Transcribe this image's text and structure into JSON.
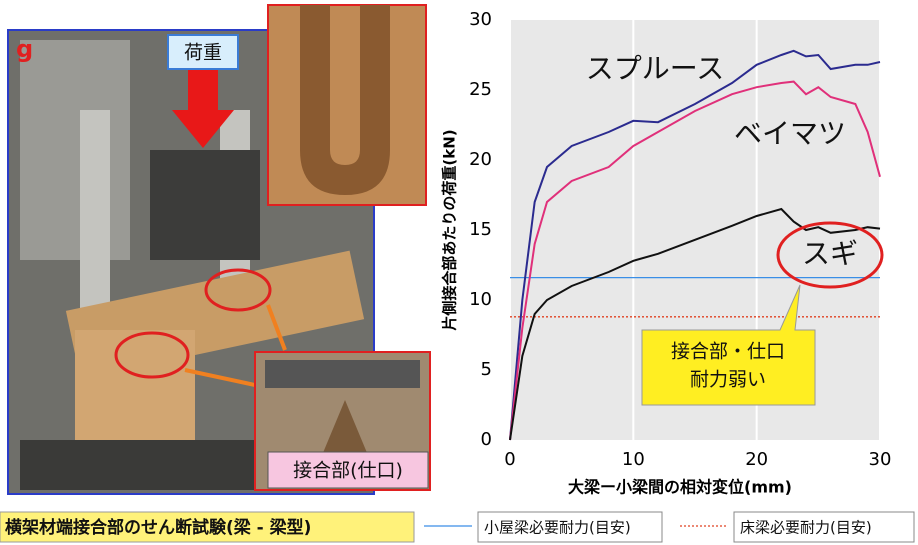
{
  "chart_data": {
    "type": "line",
    "ylabel": "片側接合部あたりの荷重(kN)",
    "xlabel": "大梁ー小梁間の相対変位(mm)",
    "x": [
      0,
      0.5,
      1,
      2,
      3,
      5,
      8,
      10,
      12,
      15,
      18,
      20,
      22,
      23,
      24,
      25,
      26,
      28,
      29,
      30
    ],
    "series": [
      {
        "name": "スプルース",
        "color": "#2b2b8f",
        "values": [
          0,
          5,
          10,
          17,
          19.5,
          21,
          22,
          22.8,
          22.7,
          24,
          25.5,
          26.8,
          27.5,
          27.8,
          27.4,
          27.5,
          26.5,
          26.8,
          26.8,
          27
        ]
      },
      {
        "name": "ベイマツ",
        "color": "#e0307a",
        "values": [
          0,
          4,
          8,
          14,
          17,
          18.5,
          19.5,
          21,
          22,
          23.5,
          24.7,
          25.2,
          25.5,
          25.6,
          24.7,
          25.2,
          24.5,
          24,
          22,
          18.8
        ]
      },
      {
        "name": "スギ",
        "color": "#111111",
        "values": [
          0,
          3,
          6,
          9,
          10,
          11,
          12,
          12.8,
          13.3,
          14.3,
          15.3,
          16,
          16.5,
          15.6,
          15,
          15.2,
          14.8,
          15,
          15.2,
          15.1
        ]
      }
    ],
    "reference_lines": [
      {
        "name": "小屋梁必要耐力(目安)",
        "value": 11.6,
        "color": "#3a8ee6",
        "style": "solid"
      },
      {
        "name": "床梁必要耐力(目安)",
        "value": 8.8,
        "color": "#e04020",
        "style": "dotted"
      }
    ],
    "callout": [
      "接合部・仕口",
      "耐力弱い"
    ],
    "xlim": [
      0,
      30
    ],
    "xticks": [
      0,
      10,
      20,
      30
    ],
    "ylim": [
      0,
      30
    ],
    "yticks": [
      0,
      5,
      10,
      15,
      20,
      25,
      30
    ],
    "grid": true
  },
  "photo": {
    "mark": "g",
    "load_label": "荷重",
    "joint_label": "接合部(仕口)"
  },
  "caption": "横架材端接合部のせん断試験(梁 - 梁型)"
}
